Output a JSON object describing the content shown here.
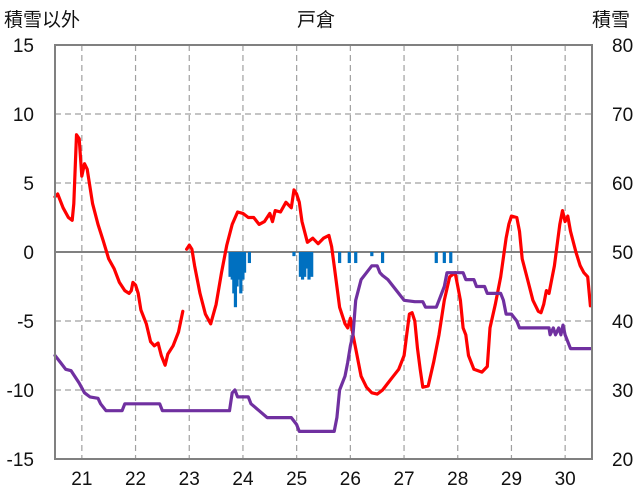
{
  "chart_data": {
    "type": "line",
    "title": "戸倉",
    "left_axis_label": "積雪以外",
    "right_axis_label": "積雪",
    "x_ticks": [
      "21",
      "22",
      "23",
      "24",
      "25",
      "26",
      "27",
      "28",
      "29",
      "30"
    ],
    "xlim": [
      20.5,
      30.5
    ],
    "y_left": {
      "ylim": [
        -15,
        15
      ],
      "ticks": [
        15,
        10,
        5,
        0,
        -5,
        -10,
        -15
      ]
    },
    "y_right": {
      "ylim": [
        20,
        80
      ],
      "ticks": [
        80,
        70,
        60,
        50,
        40,
        30,
        20
      ]
    },
    "grid": true,
    "colors": {
      "red": "#ff0000",
      "purple": "#7030a0",
      "blue": "#0070c0",
      "zero": "#808080",
      "grid": "#a0a0a0",
      "frame": "#808080"
    },
    "series": [
      {
        "color": "red",
        "axis": "left",
        "segments": [
          [
            [
              20.5,
              4.0
            ],
            [
              20.55,
              4.2
            ],
            [
              20.65,
              3.2
            ],
            [
              20.75,
              2.5
            ],
            [
              20.82,
              2.3
            ],
            [
              20.85,
              3.5
            ],
            [
              20.9,
              8.5
            ],
            [
              20.95,
              8.2
            ],
            [
              21.0,
              5.5
            ],
            [
              21.05,
              6.4
            ],
            [
              21.1,
              6.0
            ],
            [
              21.2,
              3.5
            ],
            [
              21.3,
              2.0
            ],
            [
              21.4,
              0.8
            ],
            [
              21.5,
              -0.5
            ],
            [
              21.6,
              -1.2
            ],
            [
              21.7,
              -2.2
            ],
            [
              21.8,
              -2.8
            ],
            [
              21.88,
              -3.0
            ],
            [
              21.92,
              -2.8
            ],
            [
              21.95,
              -2.2
            ],
            [
              22.0,
              -2.4
            ],
            [
              22.05,
              -3.0
            ],
            [
              22.1,
              -4.2
            ],
            [
              22.2,
              -5.2
            ],
            [
              22.28,
              -6.5
            ],
            [
              22.35,
              -6.8
            ],
            [
              22.42,
              -6.6
            ],
            [
              22.48,
              -7.5
            ],
            [
              22.55,
              -8.2
            ],
            [
              22.6,
              -7.4
            ],
            [
              22.7,
              -6.8
            ],
            [
              22.8,
              -5.8
            ],
            [
              22.88,
              -4.3
            ]
          ],
          [
            [
              22.95,
              0.2
            ],
            [
              23.0,
              0.5
            ],
            [
              23.05,
              0.2
            ],
            [
              23.1,
              -1.0
            ],
            [
              23.2,
              -3.0
            ],
            [
              23.3,
              -4.5
            ],
            [
              23.4,
              -5.2
            ],
            [
              23.5,
              -3.8
            ],
            [
              23.6,
              -1.5
            ],
            [
              23.7,
              0.5
            ],
            [
              23.8,
              2.0
            ],
            [
              23.9,
              2.9
            ],
            [
              24.0,
              2.8
            ],
            [
              24.1,
              2.5
            ],
            [
              24.2,
              2.5
            ],
            [
              24.3,
              2.0
            ],
            [
              24.4,
              2.2
            ],
            [
              24.5,
              2.8
            ],
            [
              24.55,
              2.2
            ],
            [
              24.6,
              3.0
            ],
            [
              24.7,
              2.9
            ],
            [
              24.8,
              3.6
            ],
            [
              24.9,
              3.2
            ],
            [
              24.95,
              4.5
            ],
            [
              25.0,
              4.2
            ],
            [
              25.05,
              3.6
            ],
            [
              25.1,
              2.2
            ],
            [
              25.2,
              0.7
            ],
            [
              25.3,
              1.0
            ],
            [
              25.4,
              0.6
            ],
            [
              25.5,
              1.0
            ],
            [
              25.6,
              1.2
            ],
            [
              25.65,
              0.4
            ],
            [
              25.7,
              -1.0
            ],
            [
              25.75,
              -2.5
            ],
            [
              25.8,
              -4.0
            ],
            [
              25.9,
              -5.2
            ],
            [
              25.95,
              -5.5
            ],
            [
              26.0,
              -4.8
            ],
            [
              26.05,
              -6.0
            ],
            [
              26.1,
              -7.0
            ],
            [
              26.15,
              -8.0
            ],
            [
              26.2,
              -9.0
            ],
            [
              26.3,
              -9.8
            ],
            [
              26.4,
              -10.2
            ],
            [
              26.5,
              -10.3
            ],
            [
              26.6,
              -10.0
            ],
            [
              26.7,
              -9.5
            ],
            [
              26.8,
              -9.0
            ],
            [
              26.9,
              -8.5
            ],
            [
              27.0,
              -7.5
            ],
            [
              27.05,
              -6.0
            ],
            [
              27.1,
              -4.5
            ],
            [
              27.15,
              -4.4
            ],
            [
              27.2,
              -5.0
            ],
            [
              27.25,
              -7.0
            ],
            [
              27.3,
              -8.5
            ],
            [
              27.35,
              -9.8
            ],
            [
              27.45,
              -9.7
            ],
            [
              27.55,
              -8.0
            ],
            [
              27.65,
              -6.0
            ],
            [
              27.75,
              -3.5
            ],
            [
              27.85,
              -1.8
            ],
            [
              27.95,
              -1.5
            ],
            [
              28.0,
              -2.5
            ],
            [
              28.05,
              -3.5
            ],
            [
              28.1,
              -5.5
            ],
            [
              28.15,
              -6.0
            ],
            [
              28.2,
              -7.5
            ],
            [
              28.3,
              -8.5
            ],
            [
              28.45,
              -8.7
            ],
            [
              28.55,
              -8.3
            ],
            [
              28.6,
              -5.5
            ],
            [
              28.7,
              -3.8
            ],
            [
              28.8,
              -1.8
            ],
            [
              28.9,
              1.0
            ],
            [
              28.95,
              2.0
            ],
            [
              29.0,
              2.6
            ],
            [
              29.1,
              2.5
            ],
            [
              29.15,
              1.5
            ],
            [
              29.2,
              -0.5
            ],
            [
              29.3,
              -2.0
            ],
            [
              29.4,
              -3.5
            ],
            [
              29.5,
              -4.3
            ],
            [
              29.55,
              -4.4
            ],
            [
              29.6,
              -3.8
            ],
            [
              29.65,
              -2.8
            ],
            [
              29.7,
              -3.0
            ],
            [
              29.75,
              -2.0
            ],
            [
              29.8,
              -1.0
            ],
            [
              29.85,
              0.5
            ],
            [
              29.9,
              2.0
            ],
            [
              29.95,
              3.0
            ],
            [
              30.0,
              2.2
            ],
            [
              30.05,
              2.6
            ],
            [
              30.1,
              1.5
            ],
            [
              30.2,
              0.0
            ],
            [
              30.28,
              -1.0
            ],
            [
              30.35,
              -1.5
            ],
            [
              30.42,
              -1.8
            ],
            [
              30.47,
              -3.9
            ]
          ]
        ]
      },
      {
        "color": "purple",
        "axis": "left",
        "segments": [
          [
            [
              20.5,
              -7.5
            ],
            [
              20.6,
              -8.0
            ],
            [
              20.7,
              -8.5
            ],
            [
              20.8,
              -8.6
            ],
            [
              20.9,
              -9.2
            ],
            [
              20.95,
              -9.5
            ],
            [
              21.05,
              -10.2
            ],
            [
              21.15,
              -10.5
            ],
            [
              21.3,
              -10.6
            ],
            [
              21.35,
              -11.0
            ],
            [
              21.45,
              -11.5
            ],
            [
              21.75,
              -11.5
            ],
            [
              21.8,
              -11.0
            ],
            [
              22.45,
              -11.0
            ],
            [
              22.5,
              -11.5
            ],
            [
              23.75,
              -11.5
            ],
            [
              23.8,
              -10.2
            ],
            [
              23.85,
              -10.0
            ],
            [
              23.9,
              -10.5
            ],
            [
              24.1,
              -10.5
            ],
            [
              24.15,
              -11.0
            ],
            [
              24.3,
              -11.5
            ],
            [
              24.45,
              -12.0
            ],
            [
              24.9,
              -12.0
            ],
            [
              25.0,
              -12.5
            ],
            [
              25.05,
              -13.0
            ],
            [
              25.7,
              -13.0
            ],
            [
              25.75,
              -12.0
            ],
            [
              25.8,
              -10.0
            ],
            [
              25.9,
              -9.0
            ],
            [
              25.95,
              -8.0
            ],
            [
              26.0,
              -6.8
            ],
            [
              26.05,
              -6.0
            ],
            [
              26.1,
              -3.5
            ],
            [
              26.2,
              -2.0
            ],
            [
              26.3,
              -1.5
            ],
            [
              26.4,
              -1.0
            ],
            [
              26.5,
              -1.0
            ],
            [
              26.55,
              -1.5
            ],
            [
              26.6,
              -1.7
            ],
            [
              26.7,
              -2.0
            ],
            [
              26.8,
              -2.5
            ],
            [
              26.9,
              -3.0
            ],
            [
              27.0,
              -3.5
            ],
            [
              27.2,
              -3.6
            ],
            [
              27.35,
              -3.6
            ],
            [
              27.4,
              -4.0
            ],
            [
              27.6,
              -4.0
            ],
            [
              27.65,
              -3.5
            ],
            [
              27.75,
              -2.5
            ],
            [
              27.8,
              -1.5
            ],
            [
              28.1,
              -1.5
            ],
            [
              28.15,
              -2.0
            ],
            [
              28.3,
              -2.0
            ],
            [
              28.35,
              -2.5
            ],
            [
              28.5,
              -2.5
            ],
            [
              28.55,
              -3.0
            ],
            [
              28.8,
              -3.0
            ],
            [
              28.85,
              -3.5
            ],
            [
              28.9,
              -4.5
            ],
            [
              29.0,
              -4.5
            ],
            [
              29.1,
              -5.0
            ],
            [
              29.15,
              -5.5
            ],
            [
              29.7,
              -5.5
            ],
            [
              29.72,
              -6.0
            ],
            [
              29.78,
              -5.5
            ],
            [
              29.82,
              -6.0
            ],
            [
              29.88,
              -5.5
            ],
            [
              29.92,
              -6.0
            ],
            [
              29.96,
              -5.3
            ],
            [
              30.0,
              -6.0
            ],
            [
              30.05,
              -6.5
            ],
            [
              30.1,
              -7.0
            ],
            [
              30.47,
              -7.0
            ]
          ]
        ]
      }
    ],
    "bars": {
      "color": "blue",
      "axis": "left",
      "points": [
        [
          23.76,
          -1.8
        ],
        [
          23.8,
          -2.0
        ],
        [
          23.83,
          -3.0
        ],
        [
          23.86,
          -4.0
        ],
        [
          23.89,
          -2.5
        ],
        [
          23.92,
          -2.0
        ],
        [
          23.96,
          -3.0
        ],
        [
          24.0,
          -2.0
        ],
        [
          24.03,
          -1.5
        ],
        [
          24.12,
          -0.8
        ],
        [
          24.95,
          -0.3
        ],
        [
          25.07,
          -1.8
        ],
        [
          25.11,
          -2.0
        ],
        [
          25.15,
          -1.8
        ],
        [
          25.19,
          -1.2
        ],
        [
          25.23,
          -2.0
        ],
        [
          25.28,
          -1.8
        ],
        [
          25.8,
          -0.8
        ],
        [
          25.98,
          -0.8
        ],
        [
          26.1,
          -0.8
        ],
        [
          26.4,
          -0.3
        ],
        [
          26.6,
          -0.8
        ],
        [
          27.6,
          -0.8
        ],
        [
          27.75,
          -0.8
        ],
        [
          27.87,
          -0.8
        ]
      ]
    }
  }
}
